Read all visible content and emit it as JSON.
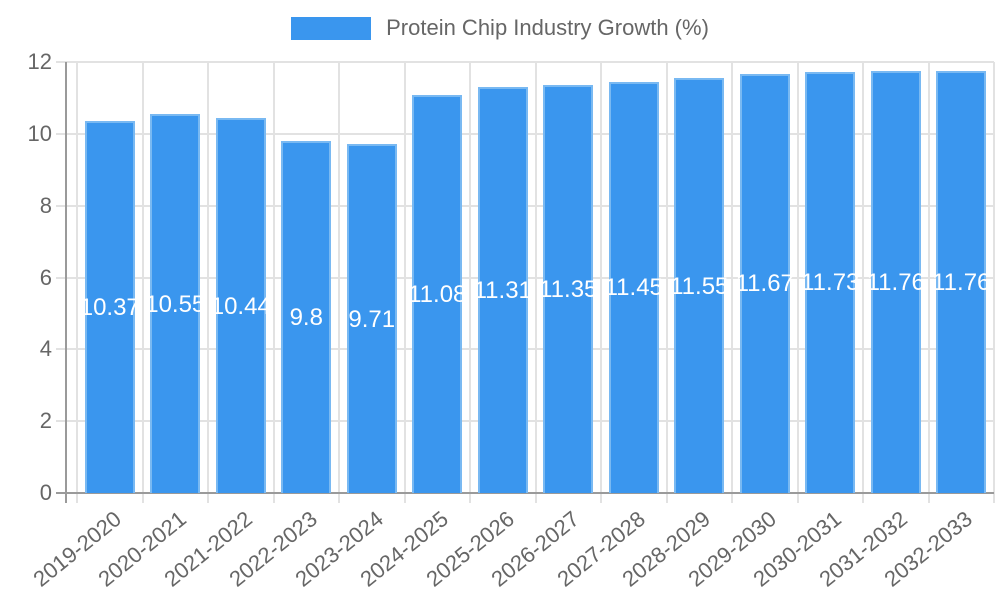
{
  "legend": {
    "label": "Protein Chip Industry Growth (%)"
  },
  "chart_data": {
    "type": "bar",
    "title": "Protein Chip Industry Growth (%)",
    "categories": [
      "2019-2020",
      "2020-2021",
      "2021-2022",
      "2022-2023",
      "2023-2024",
      "2024-2025",
      "2025-2026",
      "2026-2027",
      "2027-2028",
      "2028-2029",
      "2029-2030",
      "2030-2031",
      "2031-2032",
      "2032-2033"
    ],
    "values": [
      10.37,
      10.55,
      10.44,
      9.8,
      9.71,
      11.08,
      11.31,
      11.35,
      11.45,
      11.55,
      11.67,
      11.73,
      11.76,
      11.76
    ],
    "value_labels": [
      "10.37",
      "10.55",
      "10.44",
      "9.8",
      "9.71",
      "11.08",
      "11.31",
      "11.35",
      "11.45",
      "11.55",
      "11.67",
      "11.73",
      "11.76",
      "11.76"
    ],
    "xlabel": "",
    "ylabel": "",
    "ylim": [
      0,
      12
    ],
    "yticks": [
      0,
      2,
      4,
      6,
      8,
      10,
      12
    ],
    "grid": true,
    "legend_position": "top",
    "colors": {
      "bar_fill": "#3a96ee",
      "bar_border": "#79b9f2",
      "gridline": "#e2e2e2",
      "axis_line": "#9a9a9a",
      "tick_text": "#666666",
      "legend_text": "#666666",
      "value_label": "#ffffff",
      "background": "#ffffff"
    }
  }
}
